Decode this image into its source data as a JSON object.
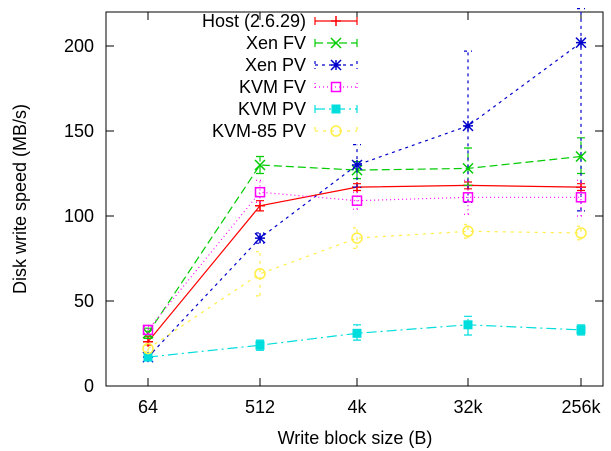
{
  "chart_data": {
    "type": "line",
    "xlabel": "Write block size (B)",
    "ylabel": "Disk write speed (MB/s)",
    "categories": [
      "64",
      "512",
      "4k",
      "32k",
      "256k"
    ],
    "ylim": [
      0,
      220
    ],
    "yticks": [
      0,
      50,
      100,
      150,
      200
    ],
    "grid": false,
    "legend_position": "top-left",
    "series": [
      {
        "name": "Host (2.6.29)",
        "color": "#ff0000",
        "marker": "plus",
        "dash": "",
        "values": [
          26,
          106,
          117,
          118,
          117
        ],
        "err": [
          [
            24,
            29
          ],
          [
            103,
            109
          ],
          [
            115,
            119
          ],
          [
            116,
            120
          ],
          [
            115,
            119
          ]
        ]
      },
      {
        "name": "Xen FV",
        "color": "#00cc00",
        "marker": "x",
        "dash": "8,4",
        "values": [
          31,
          130,
          127,
          128,
          135
        ],
        "err": [
          [
            28,
            34
          ],
          [
            125,
            135
          ],
          [
            122,
            132
          ],
          [
            118,
            140
          ],
          [
            125,
            146
          ]
        ]
      },
      {
        "name": "Xen PV",
        "color": "#0000cc",
        "marker": "star",
        "dash": "3,4",
        "values": [
          17,
          87,
          130,
          153,
          202
        ],
        "err": [
          [
            15,
            19
          ],
          [
            84,
            90
          ],
          [
            117,
            142
          ],
          [
            108,
            197
          ],
          [
            103,
            222
          ]
        ]
      },
      {
        "name": "KVM FV",
        "color": "#ff00ff",
        "marker": "square-open",
        "dash": "1,3",
        "values": [
          33,
          114,
          109,
          111,
          111
        ],
        "err": [
          [
            31,
            35
          ],
          [
            108,
            121
          ],
          [
            104,
            114
          ],
          [
            101,
            121
          ],
          [
            100,
            121
          ]
        ]
      },
      {
        "name": "KVM PV",
        "color": "#00dddd",
        "marker": "square-filled",
        "dash": "10,4,2,4",
        "values": [
          17,
          24,
          31,
          36,
          33
        ],
        "err": [
          [
            15,
            19
          ],
          [
            21,
            27
          ],
          [
            27,
            36
          ],
          [
            30,
            41
          ],
          [
            30,
            36
          ]
        ]
      },
      {
        "name": "KVM-85 PV",
        "color": "#ffee44",
        "marker": "circle-open",
        "dash": "3,5",
        "values": [
          22,
          66,
          87,
          91,
          90
        ],
        "err": [
          [
            20,
            24
          ],
          [
            53,
            79
          ],
          [
            81,
            93
          ],
          [
            87,
            95
          ],
          [
            86,
            94
          ]
        ]
      }
    ]
  }
}
